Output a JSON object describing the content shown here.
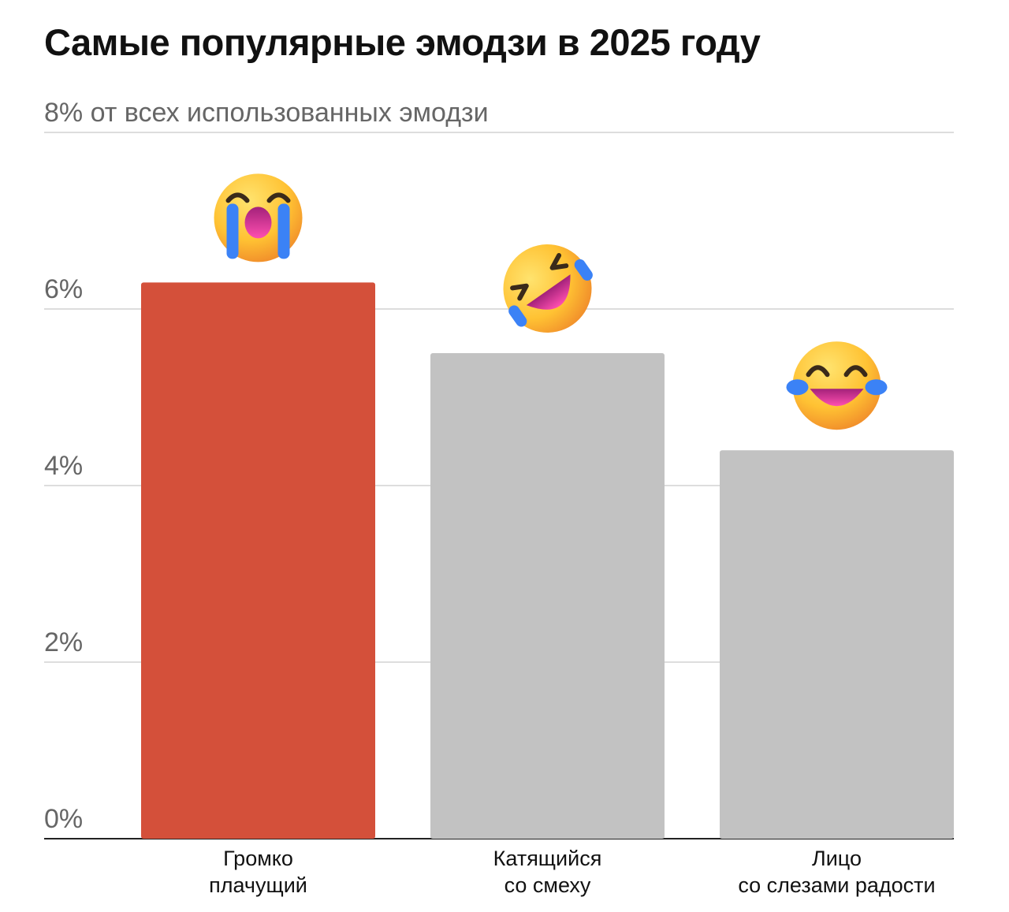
{
  "chart_data": {
    "type": "bar",
    "title": "Самые популярные эмодзи в 2025 году",
    "yticks": [
      "0%",
      "2%",
      "4%",
      "6%",
      "8% от всех использованных эмодзи"
    ],
    "ytick_values": [
      0,
      2,
      4,
      6,
      8
    ],
    "ylim": [
      0,
      8
    ],
    "grid": true,
    "categories": [
      [
        "Громко",
        "плачущий"
      ],
      [
        "Катящийся",
        "со смеху"
      ],
      [
        "Лицо",
        "со слезами радости"
      ]
    ],
    "values": [
      6.3,
      5.5,
      4.4
    ],
    "icons": [
      "loudly-crying-face-icon",
      "rolling-on-floor-laughing-icon",
      "face-with-tears-of-joy-icon"
    ],
    "colors": {
      "highlight": "#d4503a",
      "default": "#c2c2c2",
      "grid": "#dddddd",
      "axis": "#222222"
    }
  }
}
